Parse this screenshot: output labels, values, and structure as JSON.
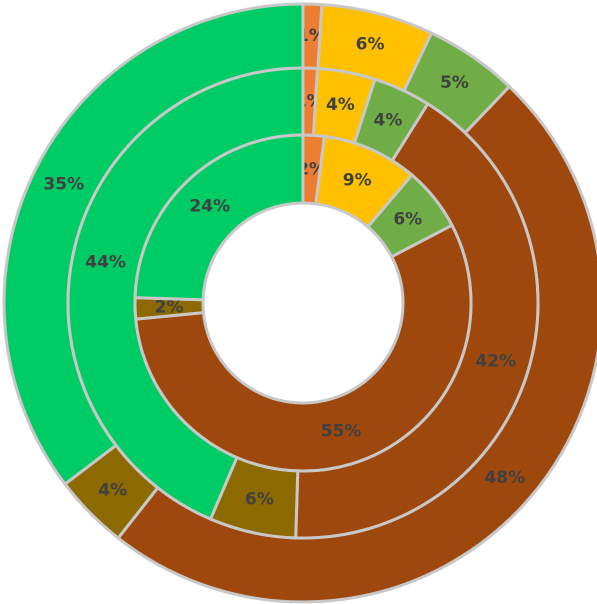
{
  "chart_data": {
    "type": "multi-donut",
    "colors": [
      "#ED7D31",
      "#FFC000",
      "#70AD47",
      "#9E480E",
      "#8C6A00",
      "#00CC66"
    ],
    "rings": [
      {
        "values": [
          1,
          6,
          5,
          48,
          4,
          35
        ],
        "value_labels": [
          "1%",
          "6%",
          "5%",
          "48%",
          "4%",
          "35%"
        ]
      },
      {
        "values": [
          1,
          4,
          4,
          42,
          6,
          44
        ],
        "value_labels": [
          "1%",
          "4%",
          "4%",
          "42%",
          "6%",
          "44%"
        ]
      },
      {
        "values": [
          2,
          9,
          6,
          55,
          2,
          24
        ],
        "value_labels": [
          "2%",
          "9%",
          "6%",
          "55%",
          "2%",
          "24%"
        ]
      }
    ]
  }
}
